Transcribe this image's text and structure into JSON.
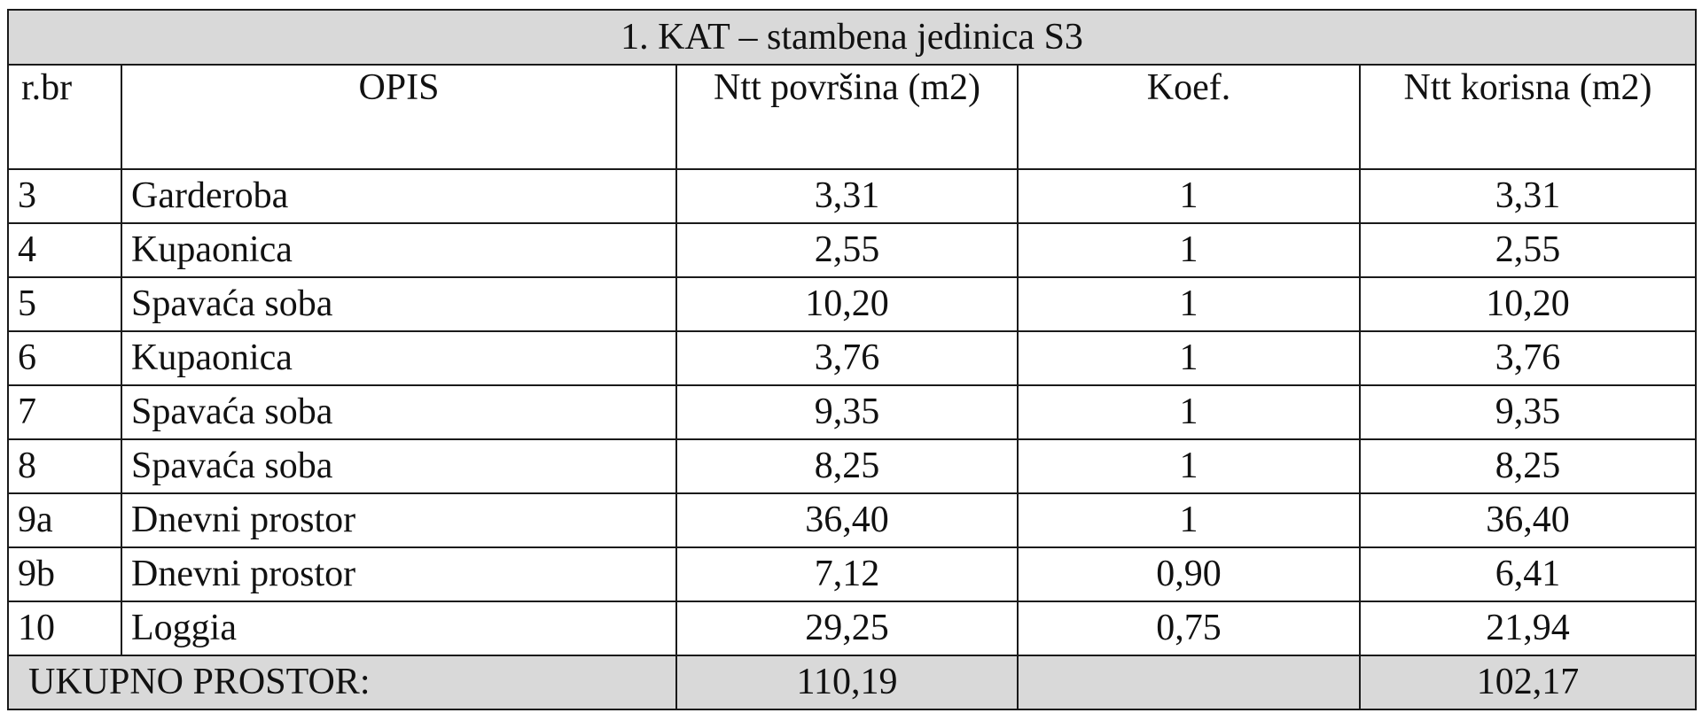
{
  "table": {
    "title": "1.   KAT – stambena jedinica S3",
    "headers": {
      "rbr": "r.br",
      "opis": "OPIS",
      "ntt_povrsina": "Ntt površina (m2)",
      "koef": "Koef.",
      "ntt_korisna": "Ntt korisna (m2)"
    },
    "rows": [
      {
        "rbr": "3",
        "opis": "Garderoba",
        "ntt_povrsina": "3,31",
        "koef": "1",
        "ntt_korisna": "3,31"
      },
      {
        "rbr": "4",
        "opis": "Kupaonica",
        "ntt_povrsina": "2,55",
        "koef": "1",
        "ntt_korisna": "2,55"
      },
      {
        "rbr": "5",
        "opis": "Spavaća soba",
        "ntt_povrsina": "10,20",
        "koef": "1",
        "ntt_korisna": "10,20"
      },
      {
        "rbr": "6",
        "opis": "Kupaonica",
        "ntt_povrsina": "3,76",
        "koef": "1",
        "ntt_korisna": "3,76"
      },
      {
        "rbr": "7",
        "opis": "Spavaća soba",
        "ntt_povrsina": "9,35",
        "koef": "1",
        "ntt_korisna": "9,35"
      },
      {
        "rbr": "8",
        "opis": "Spavaća soba",
        "ntt_povrsina": "8,25",
        "koef": "1",
        "ntt_korisna": "8,25"
      },
      {
        "rbr": "9a",
        "opis": "Dnevni prostor",
        "ntt_povrsina": "36,40",
        "koef": "1",
        "ntt_korisna": "36,40"
      },
      {
        "rbr": "9b",
        "opis": "Dnevni prostor",
        "ntt_povrsina": "7,12",
        "koef": "0,90",
        "ntt_korisna": "6,41"
      },
      {
        "rbr": "10",
        "opis": "Loggia",
        "ntt_povrsina": "29,25",
        "koef": "0,75",
        "ntt_korisna": "21,94"
      }
    ],
    "total": {
      "label": "UKUPNO PROSTOR:",
      "ntt_povrsina": "110,19",
      "koef": "",
      "ntt_korisna": "102,17"
    }
  }
}
